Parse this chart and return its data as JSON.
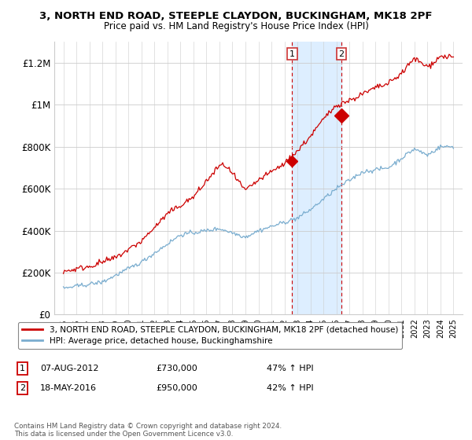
{
  "title": "3, NORTH END ROAD, STEEPLE CLAYDON, BUCKINGHAM, MK18 2PF",
  "subtitle": "Price paid vs. HM Land Registry's House Price Index (HPI)",
  "legend_line1": "3, NORTH END ROAD, STEEPLE CLAYDON, BUCKINGHAM, MK18 2PF (detached house)",
  "legend_line2": "HPI: Average price, detached house, Buckinghamshire",
  "annotation1_label": "1",
  "annotation1_date": "07-AUG-2012",
  "annotation1_price": "£730,000",
  "annotation1_hpi": "47% ↑ HPI",
  "annotation2_label": "2",
  "annotation2_date": "18-MAY-2016",
  "annotation2_price": "£950,000",
  "annotation2_hpi": "42% ↑ HPI",
  "footnote": "Contains HM Land Registry data © Crown copyright and database right 2024.\nThis data is licensed under the Open Government Licence v3.0.",
  "red_line_color": "#cc0000",
  "blue_line_color": "#7aadcf",
  "shade_color": "#ddeeff",
  "background_color": "#ffffff",
  "ylim": [
    0,
    1300000
  ],
  "yticks": [
    0,
    200000,
    400000,
    600000,
    800000,
    1000000,
    1200000
  ],
  "ytick_labels": [
    "£0",
    "£200K",
    "£400K",
    "£600K",
    "£800K",
    "£1M",
    "£1.2M"
  ],
  "sale1_year": 2012.6,
  "sale1_price": 730000,
  "sale2_year": 2016.38,
  "sale2_price": 950000,
  "xlim_left": 1994.3,
  "xlim_right": 2025.7
}
